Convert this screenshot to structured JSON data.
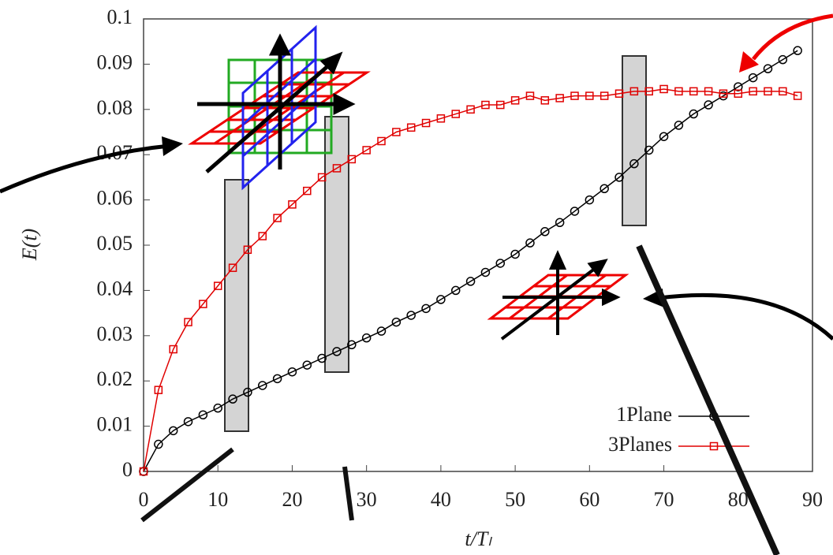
{
  "chart_data": {
    "type": "line",
    "x_label": "t/Tₗ",
    "y_label": "E(t)",
    "x": [
      0,
      2,
      4,
      6,
      8,
      10,
      12,
      14,
      16,
      18,
      20,
      22,
      24,
      26,
      28,
      30,
      32,
      34,
      36,
      38,
      40,
      42,
      44,
      46,
      48,
      50,
      52,
      54,
      56,
      58,
      60,
      62,
      64,
      66,
      68,
      70,
      72,
      74,
      76,
      78,
      80,
      82,
      84,
      86,
      88
    ],
    "series": [
      {
        "name": "1Plane",
        "color": "#000000",
        "marker": "circle",
        "values": [
          0,
          0.006,
          0.009,
          0.011,
          0.0125,
          0.014,
          0.016,
          0.0175,
          0.019,
          0.0205,
          0.022,
          0.0235,
          0.025,
          0.0265,
          0.028,
          0.0295,
          0.031,
          0.033,
          0.0345,
          0.036,
          0.038,
          0.04,
          0.042,
          0.044,
          0.046,
          0.048,
          0.0505,
          0.053,
          0.055,
          0.0575,
          0.06,
          0.0625,
          0.065,
          0.068,
          0.071,
          0.074,
          0.0765,
          0.079,
          0.081,
          0.083,
          0.085,
          0.087,
          0.089,
          0.091,
          0.093
        ]
      },
      {
        "name": "3Planes",
        "color": "#e00000",
        "marker": "square",
        "values": [
          0,
          0.018,
          0.027,
          0.033,
          0.037,
          0.041,
          0.045,
          0.049,
          0.052,
          0.056,
          0.059,
          0.062,
          0.065,
          0.067,
          0.069,
          0.071,
          0.073,
          0.075,
          0.076,
          0.077,
          0.078,
          0.079,
          0.08,
          0.081,
          0.081,
          0.082,
          0.083,
          0.082,
          0.0825,
          0.083,
          0.083,
          0.083,
          0.0835,
          0.084,
          0.084,
          0.0845,
          0.084,
          0.084,
          0.084,
          0.0835,
          0.0835,
          0.084,
          0.084,
          0.084,
          0.083
        ]
      }
    ],
    "xlim": [
      0,
      90
    ],
    "xticks": [
      0,
      10,
      20,
      30,
      40,
      50,
      60,
      70,
      80,
      90
    ],
    "ylim": [
      0,
      0.1
    ],
    "yticks": [
      0,
      0.01,
      0.02,
      0.03,
      0.04,
      0.05,
      0.06,
      0.07,
      0.08,
      0.09,
      0.1
    ],
    "legend": "lower-right"
  }
}
